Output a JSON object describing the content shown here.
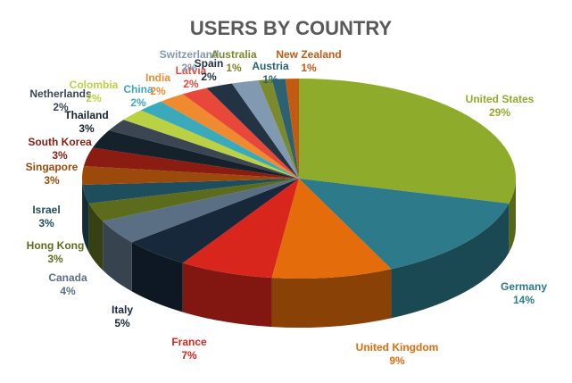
{
  "chart_data": {
    "type": "pie3d",
    "title": "USERS BY COUNTRY",
    "categories": [
      "United States",
      "Germany",
      "United Kingdom",
      "France",
      "Italy",
      "Canada",
      "Hong Kong",
      "Israel",
      "Singapore",
      "South Korea",
      "Thailand",
      "Netherlands",
      "Colombia",
      "China",
      "India",
      "Latvia",
      "Spain",
      "Switzerland",
      "Australia",
      "Austria",
      "New Zealand"
    ],
    "values": [
      29,
      14,
      9,
      7,
      5,
      4,
      3,
      3,
      3,
      3,
      3,
      2,
      2,
      2,
      2,
      2,
      2,
      2,
      1,
      1,
      1
    ],
    "value_labels": [
      "29%",
      "14%",
      "9%",
      "7%",
      "5%",
      "4%",
      "3%",
      "3%",
      "3%",
      "3%",
      "3%",
      "2%",
      "2%",
      "2%",
      "2%",
      "2%",
      "2%",
      "2%",
      "1%",
      "1%",
      "1%"
    ],
    "colors": [
      "#8fab2b",
      "#2c7a8a",
      "#e46c0a",
      "#d9261c",
      "#17283a",
      "#5b6f84",
      "#5c6b1c",
      "#1e4e5b",
      "#9b4a0c",
      "#8b1c12",
      "#15212b",
      "#3b4652",
      "#b9d142",
      "#3aaabb",
      "#f08a30",
      "#e8483a",
      "#223344",
      "#8199b1",
      "#7b8b2b",
      "#2b6171",
      "#c25a12"
    ]
  }
}
